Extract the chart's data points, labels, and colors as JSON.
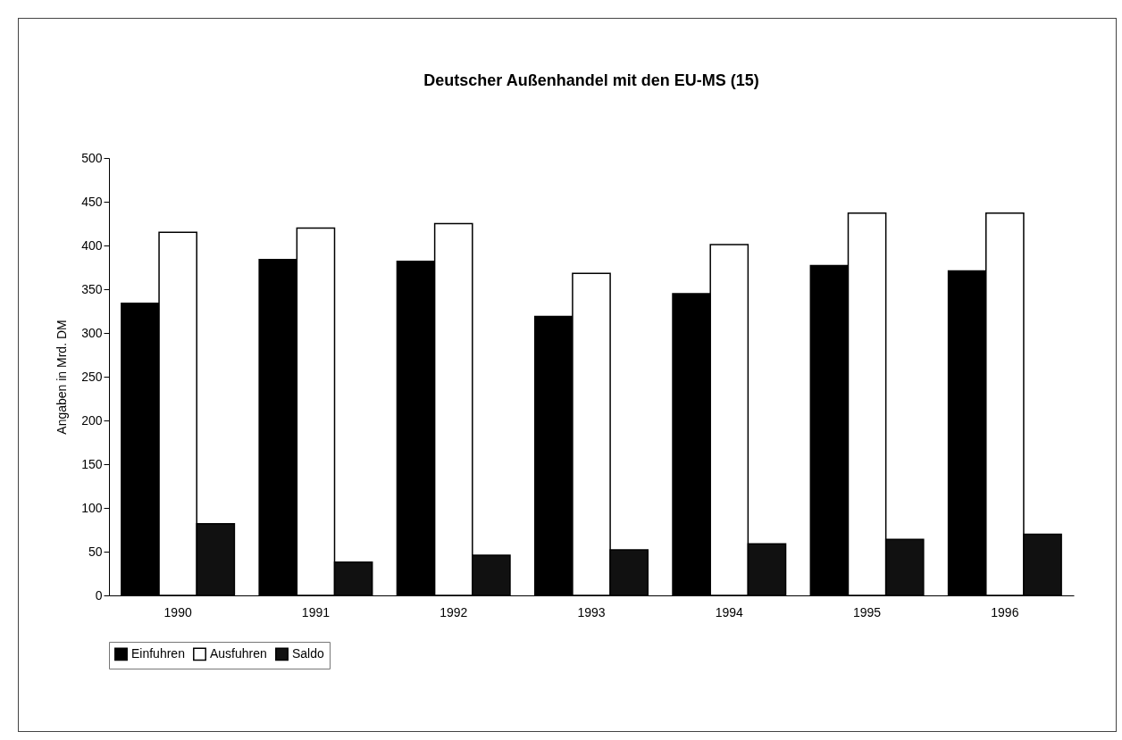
{
  "chart_data": {
    "type": "bar",
    "title": "Deutscher Außenhandel mit den EU-MS (15)",
    "ylabel": "Angaben in Mrd. DM",
    "categories": [
      "1990",
      "1991",
      "1992",
      "1993",
      "1994",
      "1995",
      "1996"
    ],
    "series": [
      {
        "name": "Einfuhren",
        "color": "#000000",
        "values": [
          334,
          384,
          382,
          319,
          345,
          377,
          371
        ]
      },
      {
        "name": "Ausfuhren",
        "color": "#ffffff",
        "values": [
          415,
          420,
          425,
          368,
          401,
          437,
          437
        ]
      },
      {
        "name": "Saldo",
        "color": "#111111",
        "values": [
          82,
          38,
          46,
          52,
          59,
          64,
          70
        ]
      }
    ],
    "ylim": [
      0,
      500
    ],
    "yticks": [
      0,
      50,
      100,
      150,
      200,
      250,
      300,
      350,
      400,
      450,
      500
    ],
    "grid": false,
    "legend": "bottom"
  }
}
